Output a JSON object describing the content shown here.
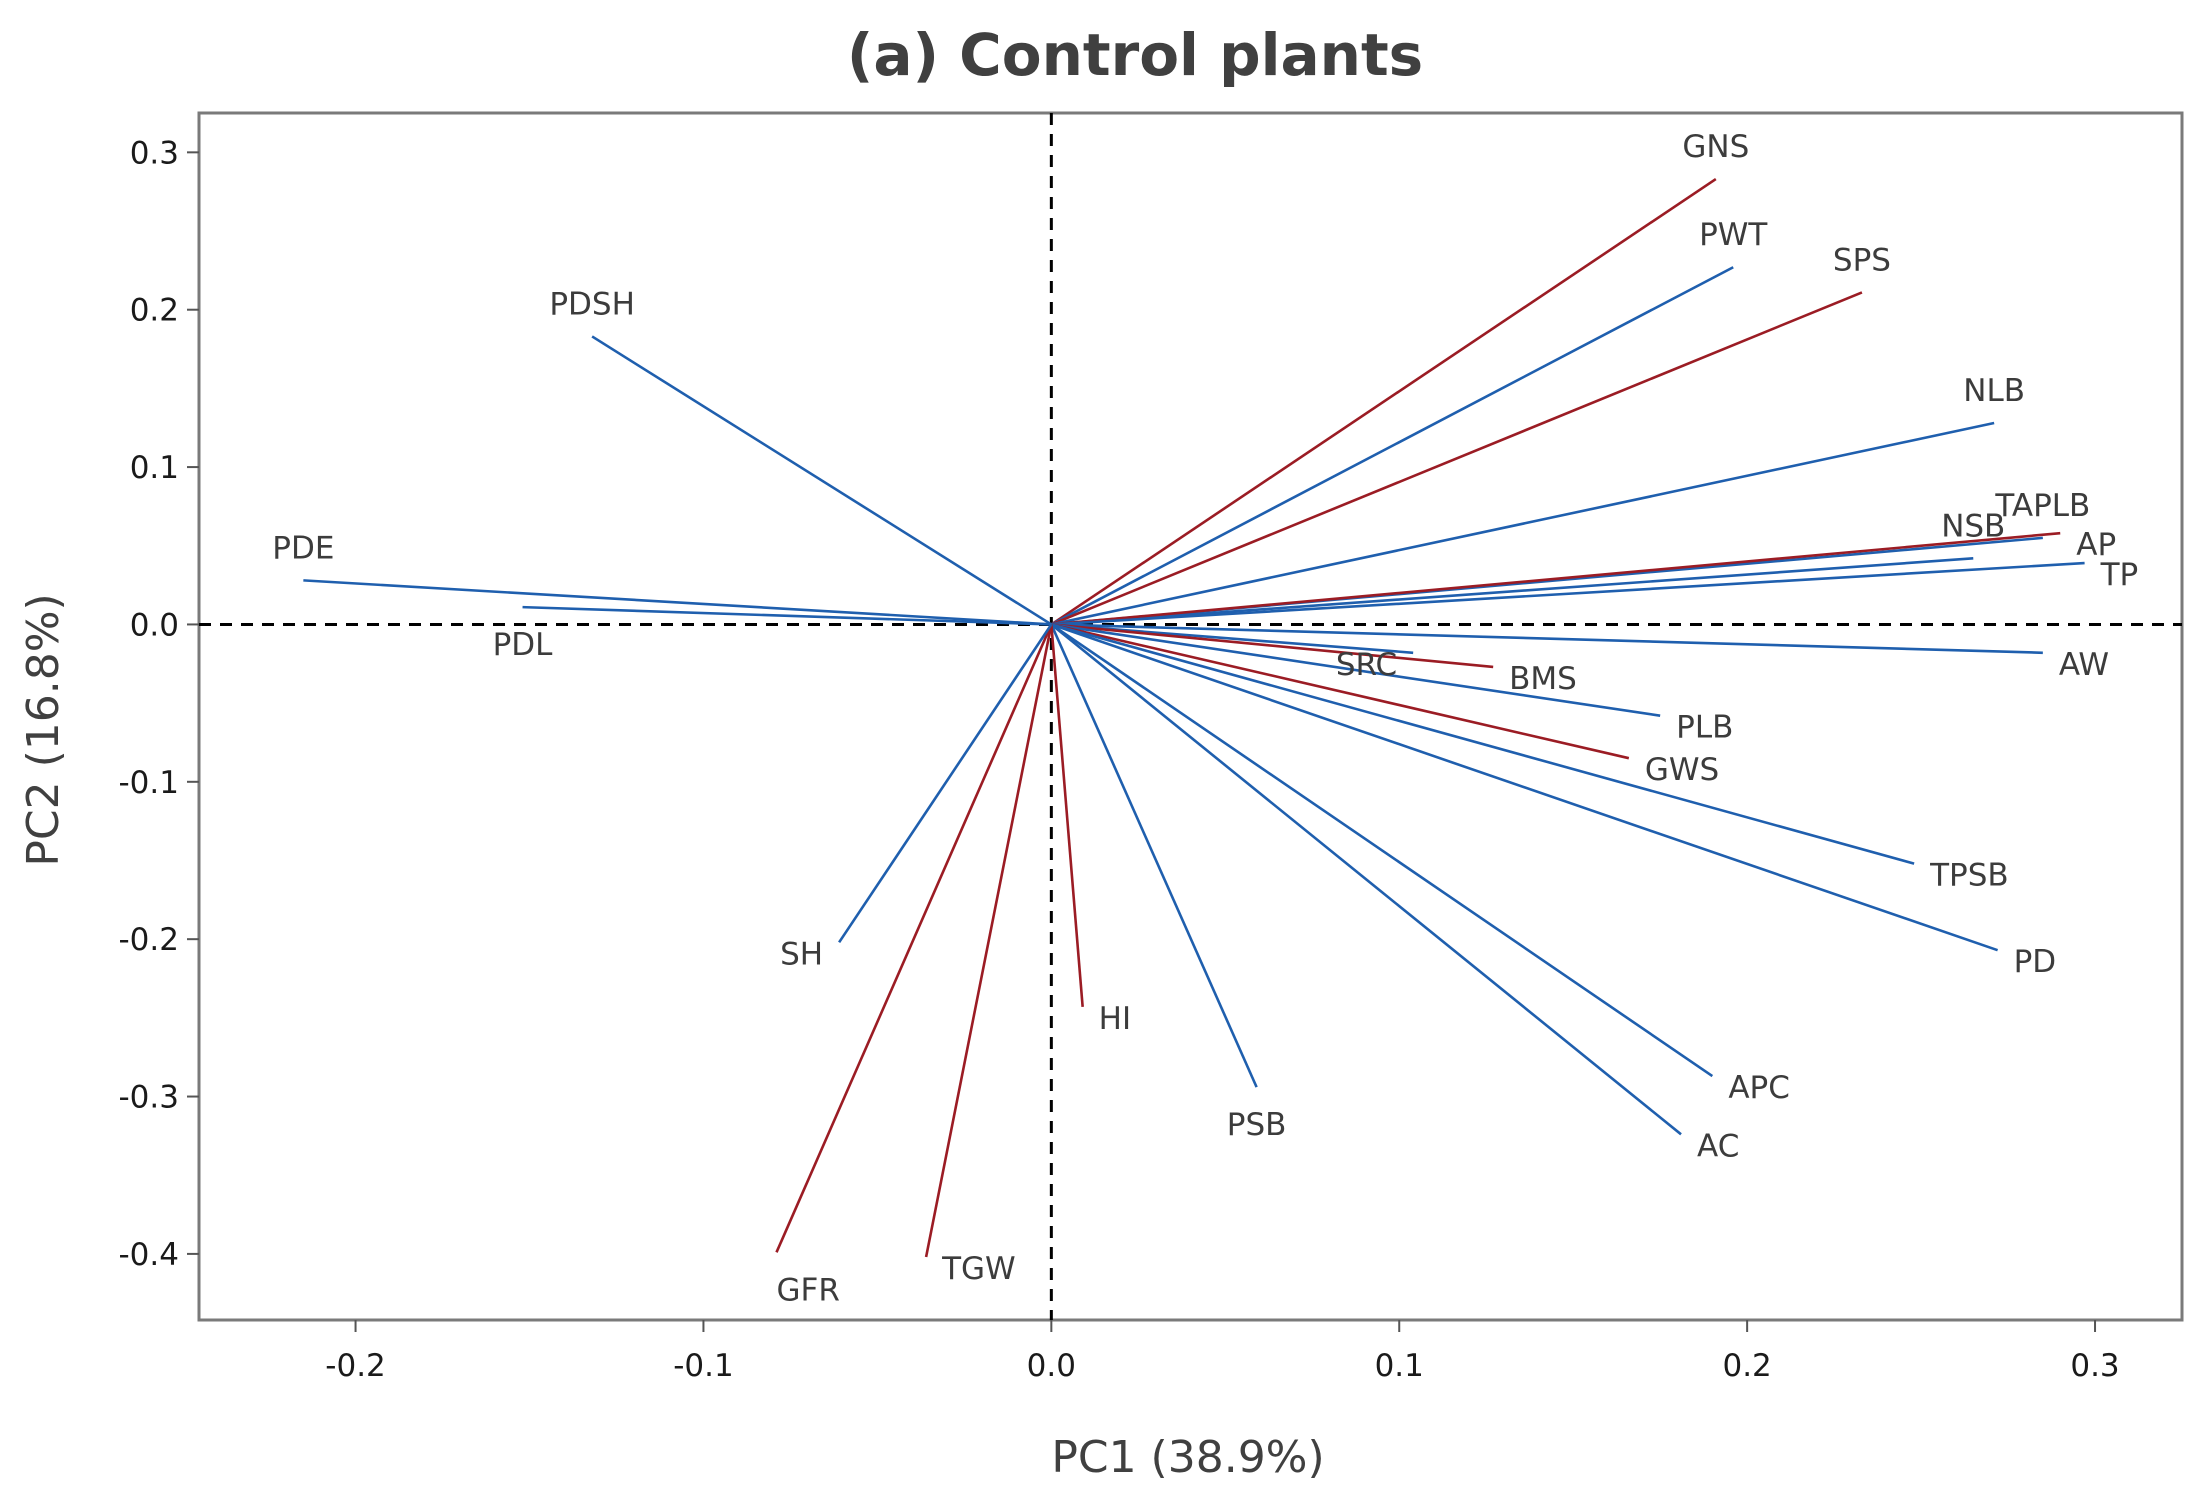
{
  "chart_data": {
    "type": "scatter",
    "subtype": "pca-loading-plot",
    "title": "(a) Control plants",
    "xlabel": "PC1 (38.9%)",
    "ylabel": "PC2 (16.8%)",
    "xlim": [
      -0.245,
      0.325
    ],
    "ylim": [
      -0.442,
      0.325
    ],
    "xticks": [
      -0.2,
      -0.1,
      0.0,
      0.1,
      0.2,
      0.3
    ],
    "xtick_labels": [
      "-0.2",
      "-0.1",
      "0.0",
      "0.1",
      "0.2",
      "0.3"
    ],
    "yticks": [
      0.3,
      0.2,
      0.1,
      0.0,
      -0.1,
      -0.2,
      -0.3,
      -0.4
    ],
    "ytick_labels": [
      "0.3",
      "0.2",
      "0.1",
      "0.0",
      "-0.1",
      "-0.2",
      "-0.3",
      "-0.4"
    ],
    "reference_lines": {
      "x": 0.0,
      "y": 0.0,
      "style": "dashed"
    },
    "colors": {
      "blue": "#1f5fae",
      "red": "#9b1c24"
    },
    "vectors": [
      {
        "name": "GNS",
        "pc1": 0.191,
        "pc2": 0.283,
        "color": "red",
        "label_anchor": "middle",
        "label_pos": "above"
      },
      {
        "name": "PWT",
        "pc1": 0.196,
        "pc2": 0.227,
        "color": "blue",
        "label_anchor": "middle",
        "label_pos": "above"
      },
      {
        "name": "SPS",
        "pc1": 0.233,
        "pc2": 0.211,
        "color": "red",
        "label_anchor": "middle",
        "label_pos": "above"
      },
      {
        "name": "NLB",
        "pc1": 0.271,
        "pc2": 0.128,
        "color": "blue",
        "label_anchor": "middle",
        "label_pos": "above"
      },
      {
        "name": "TAPLB",
        "pc1": 0.285,
        "pc2": 0.055,
        "color": "blue",
        "label_anchor": "middle",
        "label_pos": "above"
      },
      {
        "name": "NSB",
        "pc1": 0.265,
        "pc2": 0.042,
        "color": "blue",
        "label_anchor": "middle",
        "label_pos": "above"
      },
      {
        "name": "AP",
        "pc1": 0.29,
        "pc2": 0.058,
        "color": "red",
        "label_anchor": "start",
        "label_pos": "right"
      },
      {
        "name": "TP",
        "pc1": 0.297,
        "pc2": 0.039,
        "color": "blue",
        "label_anchor": "start",
        "label_pos": "right"
      },
      {
        "name": "AW",
        "pc1": 0.285,
        "pc2": -0.018,
        "color": "blue",
        "label_anchor": "start",
        "label_pos": "right"
      },
      {
        "name": "SRC",
        "pc1": 0.104,
        "pc2": -0.018,
        "color": "blue",
        "label_anchor": "end",
        "label_pos": "left"
      },
      {
        "name": "BMS",
        "pc1": 0.127,
        "pc2": -0.027,
        "color": "red",
        "label_anchor": "start",
        "label_pos": "right"
      },
      {
        "name": "PLB",
        "pc1": 0.175,
        "pc2": -0.058,
        "color": "blue",
        "label_anchor": "start",
        "label_pos": "right"
      },
      {
        "name": "GWS",
        "pc1": 0.166,
        "pc2": -0.085,
        "color": "red",
        "label_anchor": "start",
        "label_pos": "right"
      },
      {
        "name": "TPSB",
        "pc1": 0.248,
        "pc2": -0.152,
        "color": "blue",
        "label_anchor": "start",
        "label_pos": "right"
      },
      {
        "name": "PD",
        "pc1": 0.272,
        "pc2": -0.207,
        "color": "blue",
        "label_anchor": "start",
        "label_pos": "right"
      },
      {
        "name": "APC",
        "pc1": 0.19,
        "pc2": -0.287,
        "color": "blue",
        "label_anchor": "start",
        "label_pos": "right"
      },
      {
        "name": "AC",
        "pc1": 0.181,
        "pc2": -0.324,
        "color": "blue",
        "label_anchor": "start",
        "label_pos": "right"
      },
      {
        "name": "PSB",
        "pc1": 0.059,
        "pc2": -0.294,
        "color": "blue",
        "label_anchor": "middle",
        "label_pos": "below"
      },
      {
        "name": "HI",
        "pc1": 0.009,
        "pc2": -0.243,
        "color": "red",
        "label_anchor": "start",
        "label_pos": "right"
      },
      {
        "name": "TGW",
        "pc1": -0.036,
        "pc2": -0.402,
        "color": "red",
        "label_anchor": "start",
        "label_pos": "right"
      },
      {
        "name": "GFR",
        "pc1": -0.079,
        "pc2": -0.399,
        "color": "red",
        "label_anchor": "start",
        "label_pos": "below"
      },
      {
        "name": "SH",
        "pc1": -0.061,
        "pc2": -0.202,
        "color": "blue",
        "label_anchor": "end",
        "label_pos": "left"
      },
      {
        "name": "PDSH",
        "pc1": -0.132,
        "pc2": 0.183,
        "color": "blue",
        "label_anchor": "middle",
        "label_pos": "above"
      },
      {
        "name": "PDE",
        "pc1": -0.215,
        "pc2": 0.028,
        "color": "blue",
        "label_anchor": "middle",
        "label_pos": "above"
      },
      {
        "name": "PDL",
        "pc1": -0.152,
        "pc2": 0.011,
        "color": "blue",
        "label_anchor": "middle",
        "label_pos": "below"
      }
    ]
  }
}
